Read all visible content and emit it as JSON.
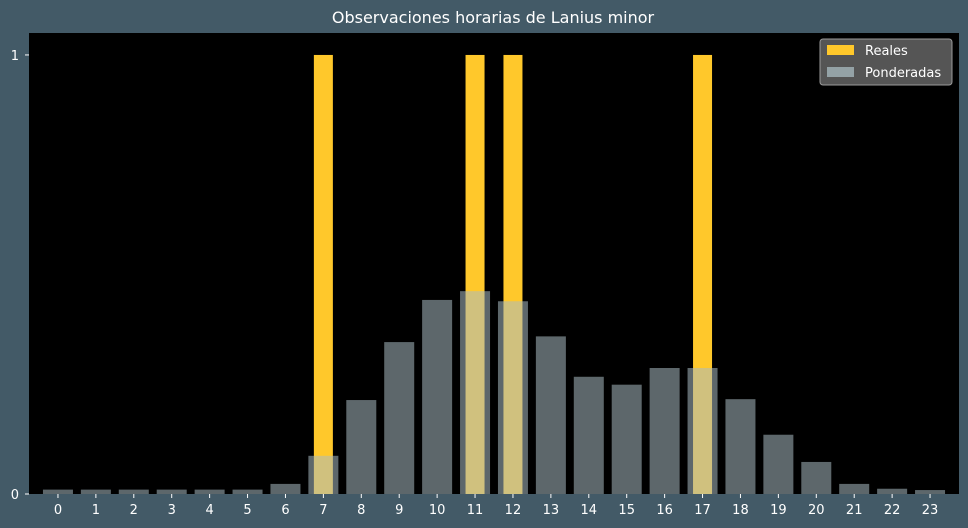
{
  "chart_data": {
    "type": "bar",
    "title": "Observaciones horarias de Lanius minor",
    "xlabel": "",
    "ylabel": "",
    "categories": [
      "0",
      "1",
      "2",
      "3",
      "4",
      "5",
      "6",
      "7",
      "8",
      "9",
      "10",
      "11",
      "12",
      "13",
      "14",
      "15",
      "16",
      "17",
      "18",
      "19",
      "20",
      "21",
      "22",
      "23"
    ],
    "ylim": [
      0,
      1.05
    ],
    "yticks": [
      0,
      1
    ],
    "legend_position": "top-right",
    "grid": false,
    "series": [
      {
        "name": "Reales",
        "color": "#ffc82b",
        "values": [
          0,
          0,
          0,
          0,
          0,
          0,
          0,
          1,
          0,
          0,
          0,
          1,
          1,
          0,
          0,
          0,
          0,
          1,
          0,
          0,
          0,
          0,
          0,
          0
        ]
      },
      {
        "name": "Ponderadas",
        "color": "#a9bcc2",
        "opacity": 0.55,
        "values": [
          0.01,
          0.01,
          0.01,
          0.01,
          0.01,
          0.01,
          0.023,
          0.087,
          0.214,
          0.346,
          0.442,
          0.462,
          0.439,
          0.359,
          0.267,
          0.249,
          0.287,
          0.287,
          0.216,
          0.135,
          0.073,
          0.023,
          0.012,
          0.009
        ]
      }
    ],
    "colors": {
      "figure_background": "#435a67",
      "plot_background": "#000000",
      "legend_background": "#555555",
      "text": "#ffffff"
    }
  }
}
